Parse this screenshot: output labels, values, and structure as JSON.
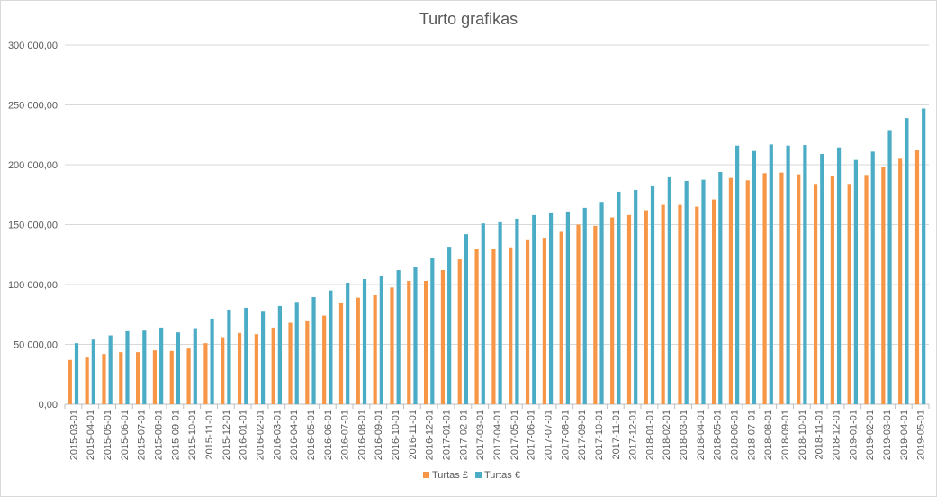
{
  "chart_data": {
    "type": "bar",
    "title": "Turto grafikas",
    "xlabel": "",
    "ylabel": "",
    "ylim": [
      0,
      300000
    ],
    "yticks": [
      "0,00",
      "50 000,00",
      "100 000,00",
      "150 000,00",
      "200 000,00",
      "250 000,00",
      "300 000,00"
    ],
    "grid": true,
    "legend_position": "bottom",
    "colors": {
      "series1": "#f79646",
      "series2": "#4bacc6"
    },
    "categories": [
      "2015-03-01",
      "2015-04-01",
      "2015-05-01",
      "2015-06-01",
      "2015-07-01",
      "2015-08-01",
      "2015-09-01",
      "2015-10-01",
      "2015-11-01",
      "2015-12-01",
      "2016-01-01",
      "2016-02-01",
      "2016-03-01",
      "2016-04-01",
      "2016-05-01",
      "2016-06-01",
      "2016-07-01",
      "2016-08-01",
      "2016-09-01",
      "2016-10-01",
      "2016-11-01",
      "2016-12-01",
      "2017-01-01",
      "2017-02-01",
      "2017-03-01",
      "2017-04-01",
      "2017-05-01",
      "2017-06-01",
      "2017-07-01",
      "2017-08-01",
      "2017-09-01",
      "2017-10-01",
      "2017-11-01",
      "2017-12-01",
      "2018-01-01",
      "2018-02-01",
      "2018-03-01",
      "2018-04-01",
      "2018-05-01",
      "2018-06-01",
      "2018-07-01",
      "2018-08-01",
      "2018-09-01",
      "2018-10-01",
      "2018-11-01",
      "2018-12-01",
      "2019-01-01",
      "2019-02-01",
      "2019-03-01",
      "2019-04-01",
      "2019-05-01"
    ],
    "series": [
      {
        "name": "Turtas £",
        "values": [
          37000,
          39000,
          42000,
          43500,
          43500,
          45000,
          44500,
          46500,
          51000,
          56000,
          59500,
          58500,
          64000,
          68000,
          70000,
          74000,
          85000,
          89000,
          91000,
          97500,
          103000,
          103000,
          112000,
          121000,
          130000,
          129500,
          131000,
          137000,
          139000,
          144000,
          150000,
          149000,
          156000,
          158000,
          162000,
          166500,
          166500,
          165000,
          171000,
          189000,
          187000,
          193000,
          193500,
          192000,
          184000,
          191000,
          184000,
          191500,
          198000,
          205000,
          212000
        ]
      },
      {
        "name": "Turtas €",
        "values": [
          51000,
          54000,
          57500,
          61000,
          61500,
          64000,
          60000,
          63500,
          71500,
          79000,
          80500,
          78000,
          82000,
          85500,
          89500,
          95000,
          101500,
          104500,
          107500,
          112000,
          114500,
          122000,
          131500,
          142000,
          151000,
          152000,
          155000,
          158000,
          159500,
          161000,
          164000,
          169000,
          177500,
          179000,
          182000,
          189500,
          186500,
          187500,
          194000,
          216000,
          211500,
          217000,
          216000,
          216500,
          209000,
          214500,
          204000,
          211000,
          229000,
          239000,
          247000
        ]
      }
    ]
  }
}
